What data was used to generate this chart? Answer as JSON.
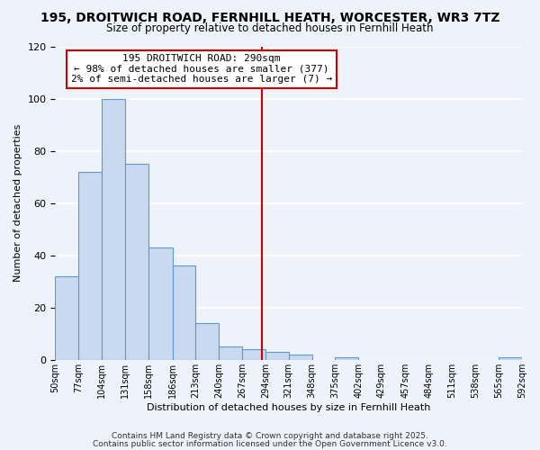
{
  "title": "195, DROITWICH ROAD, FERNHILL HEATH, WORCESTER, WR3 7TZ",
  "subtitle": "Size of property relative to detached houses in Fernhill Heath",
  "xlabel": "Distribution of detached houses by size in Fernhill Heath",
  "ylabel": "Number of detached properties",
  "bar_edges": [
    50,
    77,
    104,
    131,
    158,
    186,
    213,
    240,
    267,
    294,
    321,
    348,
    375,
    402,
    429,
    457,
    484,
    511,
    538,
    565,
    592
  ],
  "bar_heights": [
    32,
    72,
    100,
    75,
    43,
    36,
    14,
    5,
    4,
    3,
    2,
    0,
    1,
    0,
    0,
    0,
    0,
    0,
    0,
    1
  ],
  "bar_color": "#c8d9f0",
  "bar_edge_color": "#5b9bd5",
  "vline_x": 290,
  "vline_color": "#cc0000",
  "annotation_title": "195 DROITWICH ROAD: 290sqm",
  "annotation_line1": "← 98% of detached houses are smaller (377)",
  "annotation_line2": "2% of semi-detached houses are larger (7) →",
  "annotation_box_color": "#ffffff",
  "annotation_box_edge": "#cc0000",
  "ylim": [
    0,
    120
  ],
  "yticks": [
    0,
    20,
    40,
    60,
    80,
    100,
    120
  ],
  "tick_labels": [
    "50sqm",
    "77sqm",
    "104sqm",
    "131sqm",
    "158sqm",
    "186sqm",
    "213sqm",
    "240sqm",
    "267sqm",
    "294sqm",
    "321sqm",
    "348sqm",
    "375sqm",
    "402sqm",
    "429sqm",
    "457sqm",
    "484sqm",
    "511sqm",
    "538sqm",
    "565sqm",
    "592sqm"
  ],
  "footnote1": "Contains HM Land Registry data © Crown copyright and database right 2025.",
  "footnote2": "Contains public sector information licensed under the Open Government Licence v3.0.",
  "background_color": "#eef2fa",
  "grid_color": "#ffffff",
  "title_fontsize": 10,
  "subtitle_fontsize": 8.5,
  "axis_label_fontsize": 8,
  "tick_fontsize": 7,
  "footnote_fontsize": 6.5,
  "annotation_fontsize": 8
}
